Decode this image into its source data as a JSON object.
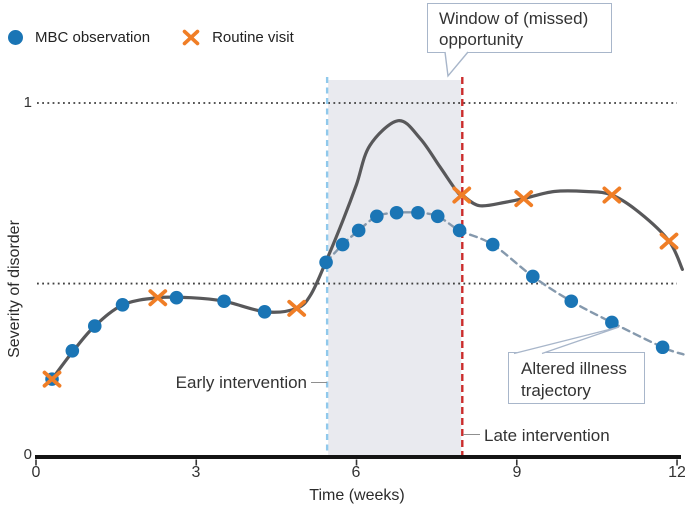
{
  "legend": {
    "mbc_label": "MBC observation",
    "routine_label": "Routine visit"
  },
  "annotations": {
    "window_line1": "Window of (missed)",
    "window_line2": "opportunity",
    "early": "Early intervention",
    "late": "Late intervention",
    "altered_line1": "Altered illness",
    "altered_line2": "trajectory"
  },
  "chart_data": {
    "type": "line",
    "xlabel": "Time (weeks)",
    "ylabel": "Severity of disorder",
    "xlim": [
      0,
      12
    ],
    "ylim": [
      0,
      1
    ],
    "grid": false,
    "legend_position": "top-left",
    "x_ticks": [
      "0",
      "3",
      "6",
      "9",
      "12"
    ],
    "x_tick_values": [
      0,
      3,
      6,
      9,
      12
    ],
    "y_ticks": [
      {
        "label": "1",
        "value": 1
      },
      {
        "label": "0",
        "value": 0
      }
    ],
    "reference_lines_y": [
      1,
      0.49
    ],
    "window_region": {
      "x0": 5.45,
      "x1": 7.98
    },
    "vlines": [
      {
        "name": "early-intervention-line",
        "x": 5.45,
        "color": "#90c9ec"
      },
      {
        "name": "late-intervention-line",
        "x": 7.98,
        "color": "#cb2c2c"
      }
    ],
    "colors": {
      "mbc": "#1a75b5",
      "routine": "#f07e26",
      "natural": "#58585a",
      "altered": "#8599ad",
      "early_line": "#90c9ec",
      "late_line": "#cb2c2c",
      "window_fill": "#e9eaef",
      "reference": "#3f3f3f",
      "axis": "#141414"
    },
    "series": [
      {
        "name": "Natural illness trajectory",
        "type": "line",
        "style": "solid",
        "color": "#58585a",
        "points": [
          [
            0.3,
            0.22
          ],
          [
            0.7,
            0.3
          ],
          [
            1.1,
            0.37
          ],
          [
            1.63,
            0.43
          ],
          [
            2.28,
            0.45
          ],
          [
            2.9,
            0.45
          ],
          [
            3.52,
            0.44
          ],
          [
            4.3,
            0.41
          ],
          [
            4.88,
            0.42
          ],
          [
            5.15,
            0.46
          ],
          [
            5.45,
            0.56
          ],
          [
            5.75,
            0.67
          ],
          [
            6.0,
            0.77
          ],
          [
            6.25,
            0.88
          ],
          [
            6.78,
            0.95
          ],
          [
            7.19,
            0.9
          ],
          [
            7.56,
            0.82
          ],
          [
            7.88,
            0.75
          ],
          [
            7.98,
            0.74
          ],
          [
            8.3,
            0.71
          ],
          [
            8.8,
            0.72
          ],
          [
            9.13,
            0.73
          ],
          [
            9.7,
            0.75
          ],
          [
            10.3,
            0.75
          ],
          [
            10.78,
            0.74
          ],
          [
            11.3,
            0.69
          ],
          [
            11.85,
            0.61
          ],
          [
            12.1,
            0.53
          ]
        ]
      },
      {
        "name": "Altered illness trajectory",
        "type": "line",
        "style": "dashed",
        "color": "#8599ad",
        "points": [
          [
            5.43,
            0.55
          ],
          [
            5.74,
            0.6
          ],
          [
            6.04,
            0.64
          ],
          [
            6.38,
            0.68
          ],
          [
            6.75,
            0.69
          ],
          [
            7.15,
            0.69
          ],
          [
            7.52,
            0.68
          ],
          [
            7.93,
            0.64
          ],
          [
            8.55,
            0.6
          ],
          [
            9.3,
            0.51
          ],
          [
            10.02,
            0.44
          ],
          [
            10.78,
            0.38
          ],
          [
            11.73,
            0.31
          ],
          [
            12.12,
            0.29
          ]
        ]
      },
      {
        "name": "MBC observation",
        "type": "scatter",
        "marker": "circle",
        "color": "#1a75b5",
        "points": [
          [
            0.3,
            0.22
          ],
          [
            0.68,
            0.3
          ],
          [
            1.1,
            0.37
          ],
          [
            1.62,
            0.43
          ],
          [
            2.63,
            0.45
          ],
          [
            3.52,
            0.44
          ],
          [
            4.28,
            0.41
          ],
          [
            5.43,
            0.55
          ],
          [
            5.74,
            0.6
          ],
          [
            6.04,
            0.64
          ],
          [
            6.38,
            0.68
          ],
          [
            6.75,
            0.69
          ],
          [
            7.15,
            0.69
          ],
          [
            7.52,
            0.68
          ],
          [
            7.93,
            0.64
          ],
          [
            8.55,
            0.6
          ],
          [
            9.3,
            0.51
          ],
          [
            10.02,
            0.44
          ],
          [
            10.78,
            0.38
          ],
          [
            11.73,
            0.31
          ]
        ]
      },
      {
        "name": "Routine visit",
        "type": "scatter",
        "marker": "x",
        "color": "#f07e26",
        "points": [
          [
            0.3,
            0.22
          ],
          [
            2.28,
            0.45
          ],
          [
            4.88,
            0.42
          ],
          [
            7.97,
            0.74
          ],
          [
            9.13,
            0.73
          ],
          [
            10.78,
            0.74
          ],
          [
            11.85,
            0.61
          ]
        ]
      }
    ]
  }
}
